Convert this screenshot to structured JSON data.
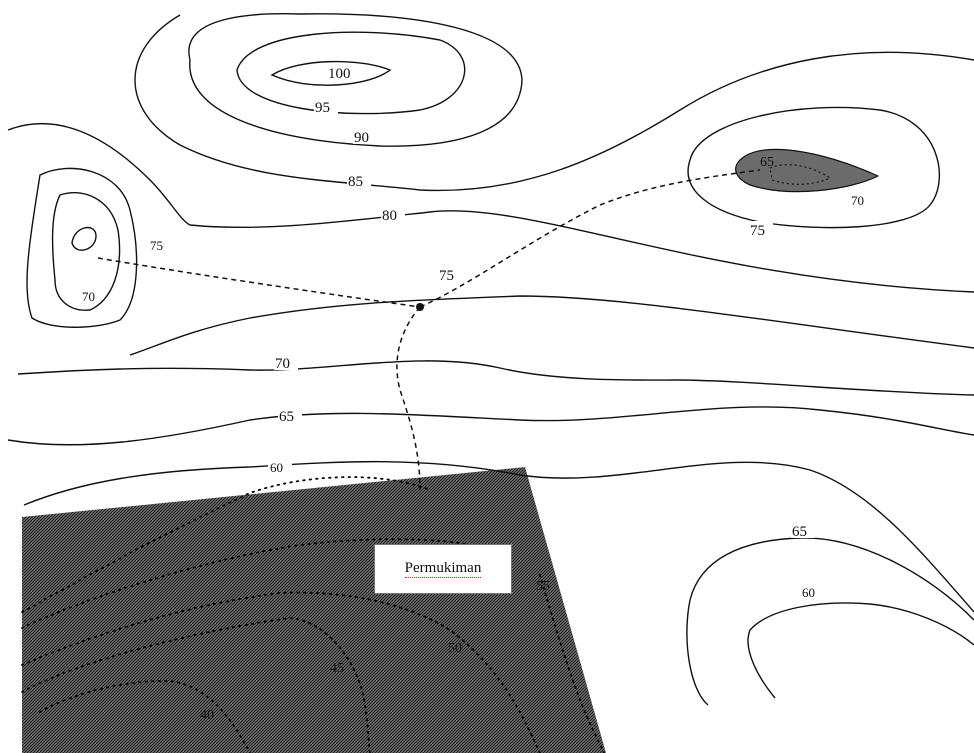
{
  "map": {
    "contour_labels": {
      "c100": "100",
      "c95": "95",
      "c90": "90",
      "c85": "85",
      "c80": "80",
      "c75_center": "75",
      "c75_right": "75",
      "c70_right": "70",
      "c65_right_top": "65",
      "c75_left": "75",
      "c70_left": "70",
      "c70_mid": "70",
      "c65_mid": "65",
      "c60_mid": "60",
      "c65_lower_right": "65",
      "c60_lower_right": "60",
      "c55_urban": "55",
      "c50_urban": "50",
      "c45_urban": "45",
      "c40_urban": "40"
    },
    "settlement_label": "Permukiman",
    "colors": {
      "contour": "#111111",
      "hatch_fill": "#555555",
      "background": "#ffffff",
      "spellcheck_underline": "#dd2222"
    }
  }
}
